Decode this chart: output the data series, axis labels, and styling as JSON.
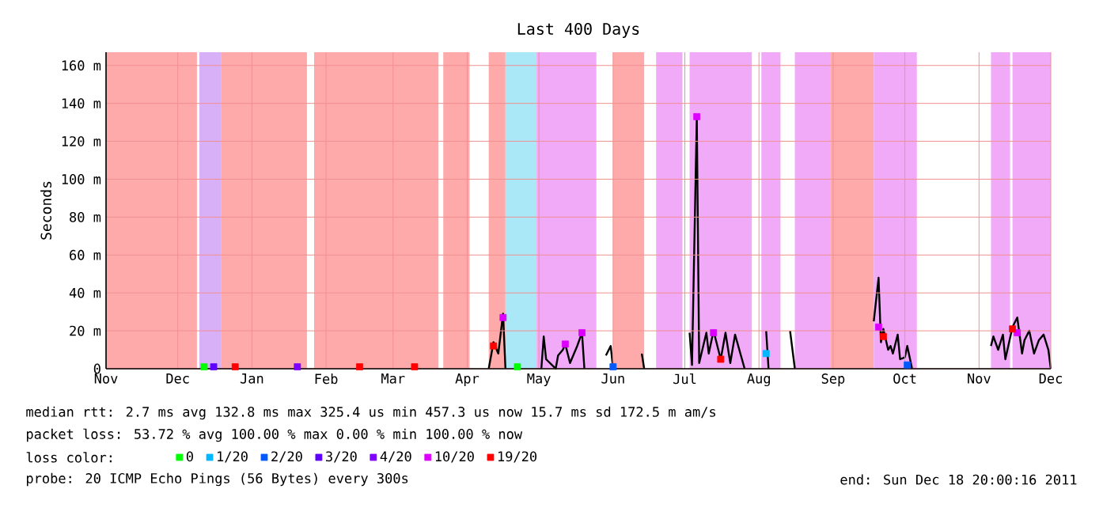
{
  "chart_data": {
    "type": "line",
    "title": "Last 400 Days",
    "ylabel": "Seconds",
    "legend_title": "loss color:",
    "legend": "bottom",
    "grid": true,
    "xlim": [
      "2010-11-01",
      "2011-12-01"
    ],
    "xticks": [
      {
        "value": "2010-11-01",
        "label": "Nov"
      },
      {
        "value": "2010-12-01",
        "label": "Dec"
      },
      {
        "value": "2011-01-01",
        "label": "Jan"
      },
      {
        "value": "2011-02-01",
        "label": "Feb"
      },
      {
        "value": "2011-03-01",
        "label": "Mar"
      },
      {
        "value": "2011-04-01",
        "label": "Apr"
      },
      {
        "value": "2011-05-01",
        "label": "May"
      },
      {
        "value": "2011-06-01",
        "label": "Jun"
      },
      {
        "value": "2011-07-01",
        "label": "Jul"
      },
      {
        "value": "2011-08-01",
        "label": "Aug"
      },
      {
        "value": "2011-09-01",
        "label": "Sep"
      },
      {
        "value": "2011-10-01",
        "label": "Oct"
      },
      {
        "value": "2011-11-01",
        "label": "Nov"
      },
      {
        "value": "2011-12-01",
        "label": "Dec"
      }
    ],
    "ylim": [
      0,
      167
    ],
    "yticks": [
      0,
      {
        "value": 20,
        "label": "20 m"
      },
      {
        "value": 40,
        "label": "40 m"
      },
      {
        "value": 60,
        "label": "60 m"
      },
      {
        "value": 80,
        "label": "80 m"
      },
      {
        "value": 100,
        "label": "100 m"
      },
      {
        "value": 120,
        "label": "120 m"
      },
      {
        "value": 140,
        "label": "140 m"
      },
      {
        "value": 160,
        "label": "160 m"
      }
    ],
    "bands": [
      {
        "axis": "x",
        "from": "2010-11-01",
        "to": "2010-12-09",
        "color": "#ffaaaa"
      },
      {
        "axis": "x",
        "from": "2010-12-10",
        "to": "2010-12-19",
        "color": "#d8b0f8"
      },
      {
        "axis": "x",
        "from": "2010-12-19",
        "to": "2011-01-24",
        "color": "#ffaaaa"
      },
      {
        "axis": "x",
        "from": "2011-01-27",
        "to": "2011-03-20",
        "color": "#ffaaaa"
      },
      {
        "axis": "x",
        "from": "2011-03-22",
        "to": "2011-04-02",
        "color": "#ffaaaa"
      },
      {
        "axis": "x",
        "from": "2011-04-10",
        "to": "2011-04-17",
        "color": "#ffaaaa"
      },
      {
        "axis": "x",
        "from": "2011-04-17",
        "to": "2011-04-30",
        "color": "#aae8f8"
      },
      {
        "axis": "x",
        "from": "2011-04-30",
        "to": "2011-05-25",
        "color": "#f0aaf8"
      },
      {
        "axis": "x",
        "from": "2011-06-01",
        "to": "2011-06-14",
        "color": "#ffaaaa"
      },
      {
        "axis": "x",
        "from": "2011-06-19",
        "to": "2011-06-30",
        "color": "#f0aaf8"
      },
      {
        "axis": "x",
        "from": "2011-07-03",
        "to": "2011-07-29",
        "color": "#f0aaf8"
      },
      {
        "axis": "x",
        "from": "2011-08-02",
        "to": "2011-08-10",
        "color": "#f0aaf8"
      },
      {
        "axis": "x",
        "from": "2011-08-16",
        "to": "2011-08-31",
        "color": "#f0aaf8"
      },
      {
        "axis": "x",
        "from": "2011-08-31",
        "to": "2011-09-18",
        "color": "#ffaaaa"
      },
      {
        "axis": "x",
        "from": "2011-09-18",
        "to": "2011-10-06",
        "color": "#f0aaf8"
      },
      {
        "axis": "x",
        "from": "2011-11-06",
        "to": "2011-11-14",
        "color": "#f0aaf8"
      },
      {
        "axis": "x",
        "from": "2011-11-15",
        "to": "2011-12-01",
        "color": "#f0aaf8"
      }
    ],
    "series": [
      {
        "color": "#000000",
        "x": [
          "2011-04-10",
          "2011-04-12",
          "2011-04-14",
          "2011-04-16",
          "2011-04-17",
          "2011-04-24",
          "2011-05-02",
          "2011-05-03",
          "2011-05-04",
          "2011-05-08",
          "2011-05-09",
          "2011-05-11",
          "2011-05-12",
          "2011-05-14",
          "2011-05-17",
          "2011-05-19",
          "2011-05-20",
          "2011-05-25",
          "2011-05-29",
          "2011-05-31",
          "2011-06-01",
          "2011-06-07",
          "2011-06-13",
          "2011-06-14",
          "2011-06-25",
          "2011-07-03",
          "2011-07-04",
          "2011-07-06",
          "2011-07-07",
          "2011-07-10",
          "2011-07-11",
          "2011-07-13",
          "2011-07-16",
          "2011-07-18",
          "2011-07-20",
          "2011-07-22",
          "2011-07-26",
          "2011-07-30",
          "2011-08-04",
          "2011-08-05",
          "2011-08-10",
          "2011-08-14",
          "2011-08-16",
          "2011-09-05",
          "2011-09-18",
          "2011-09-20",
          "2011-09-21",
          "2011-09-22",
          "2011-09-24",
          "2011-09-25",
          "2011-09-26",
          "2011-09-28",
          "2011-09-29",
          "2011-10-01",
          "2011-10-02",
          "2011-10-04",
          "2011-10-20",
          "2011-11-06",
          "2011-11-07",
          "2011-11-09",
          "2011-11-11",
          "2011-11-12",
          "2011-11-15",
          "2011-11-17",
          "2011-11-19",
          "2011-11-20",
          "2011-11-22",
          "2011-11-24",
          "2011-11-26",
          "2011-11-28",
          "2011-11-30",
          "2011-12-01"
        ],
        "values": [
          0,
          14,
          8,
          29,
          0,
          null,
          0,
          17,
          5,
          0,
          7,
          10,
          13,
          3,
          12,
          19,
          0,
          null,
          7,
          12,
          0,
          null,
          8,
          0,
          null,
          19,
          2,
          133,
          3,
          19,
          8,
          20,
          5,
          19,
          3,
          18,
          0,
          null,
          20,
          0,
          null,
          20,
          0,
          null,
          25,
          48,
          14,
          21,
          10,
          12,
          8,
          18,
          5,
          6,
          12,
          0,
          null,
          12,
          17,
          10,
          18,
          5,
          22,
          27,
          8,
          15,
          20,
          8,
          15,
          18,
          10,
          0
        ]
      },
      {
        "type": "scatter",
        "marker": "square",
        "name": "0",
        "color": "#00ff00",
        "x": [
          "2010-12-12",
          "2011-04-22"
        ],
        "values": [
          1,
          1
        ]
      },
      {
        "type": "scatter",
        "marker": "square",
        "name": "1/20",
        "color": "#00b8ff",
        "x": [
          "2011-08-04"
        ],
        "values": [
          8
        ]
      },
      {
        "type": "scatter",
        "marker": "square",
        "name": "2/20",
        "color": "#0059ff",
        "x": [
          "2011-06-01",
          "2011-10-02"
        ],
        "values": [
          1,
          2
        ]
      },
      {
        "type": "scatter",
        "marker": "square",
        "name": "3/20",
        "color": "#5e00ff",
        "x": [
          "2010-12-16"
        ],
        "values": [
          1
        ]
      },
      {
        "type": "scatter",
        "marker": "square",
        "name": "4/20",
        "color": "#7e00ff",
        "x": [
          "2011-01-20"
        ],
        "values": [
          1
        ]
      },
      {
        "type": "scatter",
        "marker": "square",
        "name": "10/20",
        "color": "#dd00ff",
        "x": [
          "2011-04-16",
          "2011-05-12",
          "2011-05-19",
          "2011-07-06",
          "2011-07-13",
          "2011-09-20",
          "2011-11-17"
        ],
        "values": [
          27,
          13,
          19,
          133,
          19,
          22,
          19
        ]
      },
      {
        "type": "scatter",
        "marker": "square",
        "name": "19/20",
        "color": "#ff0000",
        "x": [
          "2010-12-25",
          "2011-02-15",
          "2011-03-10",
          "2011-04-12",
          "2011-07-16",
          "2011-09-22",
          "2011-11-15"
        ],
        "values": [
          1,
          1,
          1,
          12,
          5,
          17,
          21
        ]
      }
    ],
    "annotations": [
      "median rtt: 2.7 ms avg 132.8 ms max 325.4 us min 457.3 us now 15.7 ms sd 172.5 m am/s",
      "packet loss: 53.72 % avg 100.00 % max 0.00 % min 100.00 % now",
      "probe: 20 ICMP Echo Pings (56 Bytes) every 300s",
      "end: Sun Dec 18 20:00:16 2011"
    ]
  }
}
